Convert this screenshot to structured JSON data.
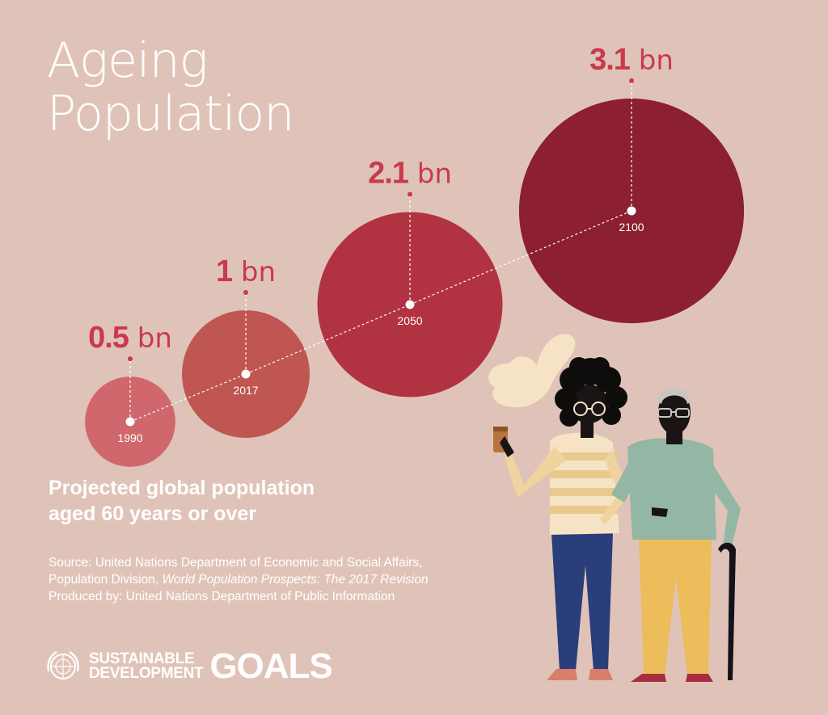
{
  "header": {
    "title_line1": "Ageing",
    "title_line2": "Population"
  },
  "subtitle": {
    "line1": "Projected global population",
    "line2": "aged 60 years or over"
  },
  "source": {
    "line1": "Source: United Nations Department of Economic and Social Affairs,",
    "line2_prefix": "Population Division, ",
    "line2_italic": "World Population Prospects: The 2017 Revision",
    "line3": "Produced by: United Nations Department of Public Information"
  },
  "branding": {
    "sdg_line1": "SUSTAINABLE",
    "sdg_line2": "DEVELOPMENT",
    "goals": "GOALS"
  },
  "chart_data": {
    "type": "bubble",
    "title": "",
    "unit": "bn",
    "points": [
      {
        "year": "1990",
        "value": 0.5,
        "label": "0.5",
        "color": "#d0676c"
      },
      {
        "year": "2017",
        "value": 1,
        "label": "1",
        "color": "#bf5651"
      },
      {
        "year": "2050",
        "value": 2.1,
        "label": "2.1",
        "color": "#b13341"
      },
      {
        "year": "2100",
        "value": 3.1,
        "label": "3.1",
        "color": "#8c1f31"
      }
    ]
  }
}
